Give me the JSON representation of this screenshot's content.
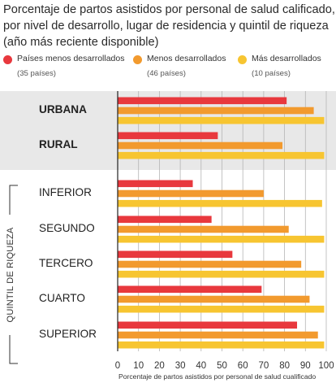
{
  "title_lines": [
    "Porcentaje de partos asistidos por personal de salud calificado,",
    "por nivel de desarrollo, lugar de residencia y quintil de riqueza",
    "(año más reciente disponible)"
  ],
  "legend": [
    {
      "name": "Países menos desarrollados",
      "sub": "(35 países)",
      "color": "#e8383d"
    },
    {
      "name": "Menos desarrollados",
      "sub": "(46 países)",
      "color": "#f29a2e"
    },
    {
      "name": "Más desarrollados",
      "sub": "(10 países)",
      "color": "#f7c531"
    }
  ],
  "group_label": "QUINTIL DE RIQUEZA",
  "chart_data": {
    "type": "bar",
    "orientation": "horizontal",
    "categories": [
      "URBANA",
      "RURAL",
      "INFERIOR",
      "SEGUNDO",
      "TERCERO",
      "CUARTO",
      "SUPERIOR"
    ],
    "series": [
      {
        "name": "Países menos desarrollados",
        "values": [
          81,
          48,
          36,
          45,
          55,
          69,
          86
        ]
      },
      {
        "name": "Menos desarrollados",
        "values": [
          94,
          79,
          70,
          82,
          88,
          92,
          96
        ]
      },
      {
        "name": "Más desarrollados",
        "values": [
          99,
          99,
          98,
          99,
          99,
          99,
          99
        ]
      }
    ],
    "xticks": [
      "0",
      "10",
      "20",
      "30",
      "40",
      "50",
      "60",
      "70",
      "80",
      "90",
      "100"
    ],
    "xlim": [
      0,
      100
    ],
    "xlabel": "Porcentaje de partos asistidos por personal de salud cualificado",
    "grid": true,
    "legend_position": "top"
  }
}
